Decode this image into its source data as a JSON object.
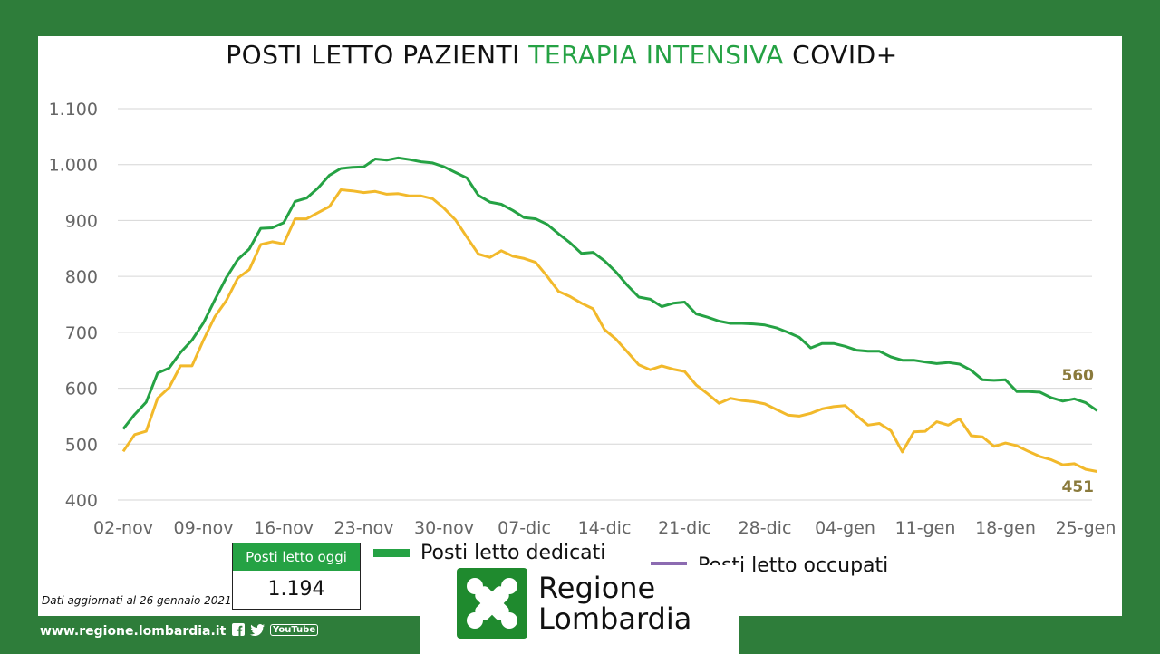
{
  "title": {
    "part1": "POSTI LETTO PAZIENTI ",
    "part2": "TERAPIA INTENSIVA",
    "part3": " COVID+"
  },
  "legend": {
    "dedicati": "Posti letto dedicati",
    "occupati": "Posti letto occupati"
  },
  "today": {
    "label": "Posti letto oggi",
    "value": "1.194"
  },
  "updated": "Dati aggiornati al 26 gennaio 2021",
  "footer": {
    "url": "www.regione.lombardia.it",
    "youtube": "YouTube"
  },
  "logo": {
    "line1": "Regione",
    "line2": "Lombardia"
  },
  "colors": {
    "dedicati": "#25a244",
    "occupati_line": "#f2b92b",
    "occupati_legend": "#8c6bb1",
    "end_label": "#8a7a3c"
  },
  "chart_data": {
    "type": "line",
    "ylim": [
      400,
      1100
    ],
    "yticks": [
      400,
      500,
      600,
      700,
      800,
      900,
      1000,
      1100
    ],
    "ytick_labels": [
      "400",
      "500",
      "600",
      "700",
      "800",
      "900",
      "1.000",
      "1.100"
    ],
    "xtick_labels": [
      "02-nov",
      "09-nov",
      "16-nov",
      "23-nov",
      "30-nov",
      "07-dic",
      "14-dic",
      "21-dic",
      "28-dic",
      "04-gen",
      "11-gen",
      "18-gen",
      "25-gen"
    ],
    "end_labels": {
      "dedicati": "560",
      "occupati": "451"
    },
    "series": [
      {
        "name": "Posti letto dedicati",
        "values": [
          527,
          553,
          575,
          627,
          636,
          664,
          686,
          717,
          758,
          798,
          830,
          849,
          886,
          887,
          896,
          934,
          940,
          958,
          981,
          993,
          995,
          996,
          1010,
          1008,
          1012,
          1009,
          1005,
          1003,
          996,
          986,
          976,
          945,
          933,
          929,
          918,
          905,
          903,
          893,
          876,
          860,
          841,
          843,
          828,
          808,
          784,
          763,
          759,
          746,
          752,
          754,
          733,
          727,
          720,
          716,
          716,
          715,
          713,
          708,
          700,
          691,
          672,
          680,
          680,
          675,
          668,
          666,
          666,
          656,
          650,
          650,
          647,
          644,
          646,
          643,
          632,
          615,
          614,
          615,
          594,
          594,
          593,
          583,
          577,
          581,
          574,
          560
        ]
      },
      {
        "name": "Posti letto occupati",
        "values": [
          487,
          517,
          523,
          582,
          601,
          640,
          640,
          686,
          728,
          757,
          797,
          812,
          857,
          862,
          858,
          903,
          903,
          914,
          925,
          955,
          953,
          950,
          952,
          947,
          948,
          944,
          944,
          939,
          922,
          901,
          870,
          840,
          834,
          846,
          836,
          832,
          825,
          800,
          773,
          764,
          752,
          742,
          705,
          688,
          665,
          642,
          633,
          640,
          634,
          630,
          606,
          590,
          573,
          582,
          578,
          576,
          572,
          562,
          552,
          550,
          555,
          563,
          567,
          569,
          551,
          534,
          537,
          524,
          486,
          522,
          523,
          540,
          534,
          545,
          515,
          513,
          496,
          502,
          497,
          487,
          478,
          472,
          463,
          465,
          455,
          451
        ]
      }
    ]
  }
}
